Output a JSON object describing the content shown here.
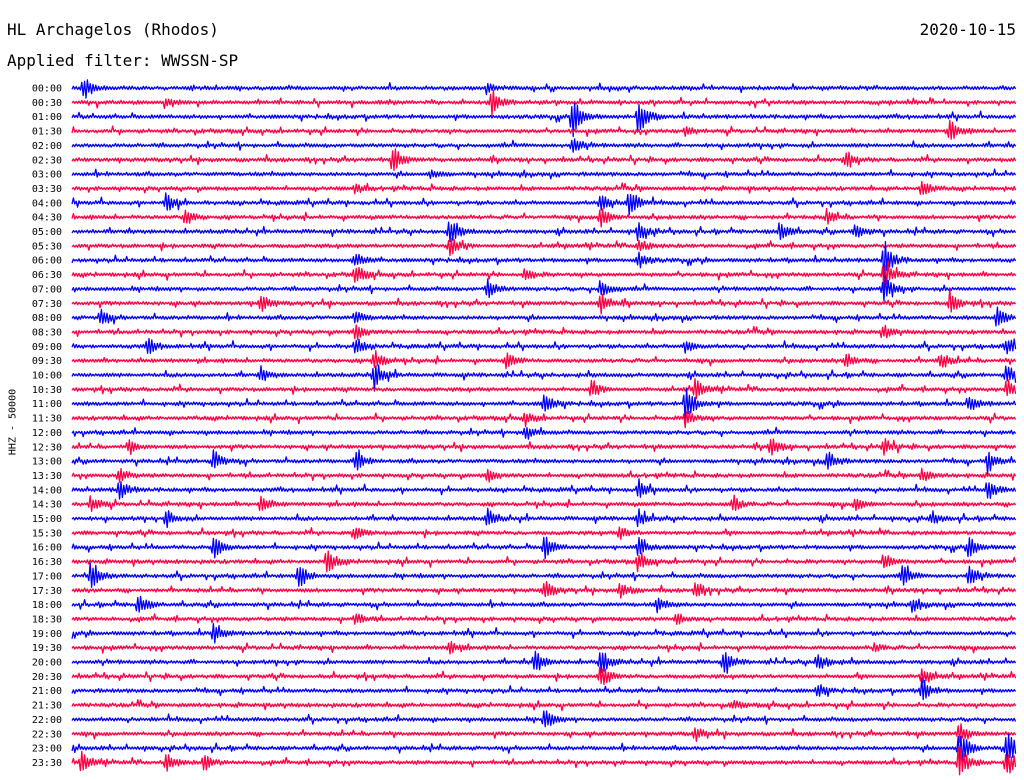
{
  "header": {
    "station": "HL Archagelos (Rhodos)",
    "date": "2020-10-15",
    "filter": "Applied filter: WWSSN-SP"
  },
  "chart_data": {
    "type": "line",
    "title": "HL Archagelos (Rhodos)",
    "date": "2020-10-15",
    "filter": "WWSSN-SP",
    "ylabel": "HHZ - 50000",
    "trace_colors": [
      "#0000ff",
      "#ff0040"
    ],
    "rows": [
      {
        "label": "00:00",
        "events": [
          [
            0.012,
            0.6
          ],
          [
            0.44,
            0.2
          ]
        ]
      },
      {
        "label": "00:30",
        "events": [
          [
            0.445,
            0.6
          ],
          [
            0.1,
            0.2
          ]
        ]
      },
      {
        "label": "01:00",
        "events": [
          [
            0.53,
            1.0
          ],
          [
            0.6,
            0.9
          ]
        ]
      },
      {
        "label": "01:30",
        "events": [
          [
            0.93,
            0.5
          ],
          [
            0.65,
            0.2
          ]
        ]
      },
      {
        "label": "02:00",
        "events": [
          [
            0.53,
            0.4
          ]
        ]
      },
      {
        "label": "02:30",
        "events": [
          [
            0.34,
            0.6
          ],
          [
            0.82,
            0.3
          ]
        ]
      },
      {
        "label": "03:00",
        "events": [
          [
            0.38,
            0.2
          ]
        ]
      },
      {
        "label": "03:30",
        "events": [
          [
            0.9,
            0.4
          ],
          [
            0.3,
            0.2
          ]
        ]
      },
      {
        "label": "04:00",
        "events": [
          [
            0.1,
            0.5
          ],
          [
            0.56,
            0.5
          ],
          [
            0.59,
            0.7
          ]
        ]
      },
      {
        "label": "04:30",
        "events": [
          [
            0.12,
            0.4
          ],
          [
            0.56,
            0.5
          ],
          [
            0.8,
            0.3
          ]
        ]
      },
      {
        "label": "05:00",
        "events": [
          [
            0.4,
            0.6
          ],
          [
            0.6,
            0.5
          ],
          [
            0.75,
            0.5
          ],
          [
            0.83,
            0.4
          ]
        ]
      },
      {
        "label": "05:30",
        "events": [
          [
            0.4,
            0.5
          ],
          [
            0.6,
            0.3
          ]
        ]
      },
      {
        "label": "06:00",
        "events": [
          [
            0.86,
            1.0
          ],
          [
            0.3,
            0.4
          ],
          [
            0.6,
            0.4
          ]
        ]
      },
      {
        "label": "06:30",
        "events": [
          [
            0.86,
            0.9
          ],
          [
            0.3,
            0.5
          ],
          [
            0.48,
            0.3
          ]
        ]
      },
      {
        "label": "07:00",
        "events": [
          [
            0.44,
            0.5
          ],
          [
            0.56,
            0.5
          ],
          [
            0.86,
            0.7
          ]
        ]
      },
      {
        "label": "07:30",
        "events": [
          [
            0.2,
            0.4
          ],
          [
            0.56,
            0.5
          ],
          [
            0.93,
            0.5
          ]
        ]
      },
      {
        "label": "08:00",
        "events": [
          [
            0.03,
            0.4
          ],
          [
            0.3,
            0.3
          ],
          [
            0.98,
            0.5
          ]
        ]
      },
      {
        "label": "08:30",
        "events": [
          [
            0.3,
            0.4
          ],
          [
            0.86,
            0.3
          ]
        ]
      },
      {
        "label": "09:00",
        "events": [
          [
            0.08,
            0.4
          ],
          [
            0.3,
            0.4
          ],
          [
            0.65,
            0.3
          ],
          [
            0.99,
            0.4
          ]
        ]
      },
      {
        "label": "09:30",
        "events": [
          [
            0.32,
            0.5
          ],
          [
            0.46,
            0.4
          ],
          [
            0.82,
            0.4
          ],
          [
            0.92,
            0.4
          ]
        ]
      },
      {
        "label": "10:00",
        "events": [
          [
            0.32,
            0.7
          ],
          [
            0.2,
            0.3
          ],
          [
            0.99,
            0.5
          ]
        ]
      },
      {
        "label": "10:30",
        "events": [
          [
            0.55,
            0.4
          ],
          [
            0.66,
            0.5
          ],
          [
            0.99,
            0.5
          ]
        ]
      },
      {
        "label": "11:00",
        "events": [
          [
            0.5,
            0.5
          ],
          [
            0.65,
            0.9
          ],
          [
            0.95,
            0.4
          ]
        ]
      },
      {
        "label": "11:30",
        "events": [
          [
            0.48,
            0.3
          ],
          [
            0.65,
            0.4
          ]
        ]
      },
      {
        "label": "12:00",
        "events": [
          [
            0.48,
            0.4
          ]
        ]
      },
      {
        "label": "12:30",
        "events": [
          [
            0.74,
            0.4
          ],
          [
            0.86,
            0.4
          ],
          [
            0.06,
            0.3
          ]
        ]
      },
      {
        "label": "13:00",
        "events": [
          [
            0.15,
            0.5
          ],
          [
            0.3,
            0.5
          ],
          [
            0.8,
            0.5
          ],
          [
            0.97,
            0.5
          ]
        ]
      },
      {
        "label": "13:30",
        "events": [
          [
            0.05,
            0.4
          ],
          [
            0.44,
            0.3
          ],
          [
            0.9,
            0.3
          ]
        ]
      },
      {
        "label": "14:00",
        "events": [
          [
            0.05,
            0.5
          ],
          [
            0.6,
            0.4
          ],
          [
            0.97,
            0.5
          ]
        ]
      },
      {
        "label": "14:30",
        "events": [
          [
            0.02,
            0.4
          ],
          [
            0.2,
            0.4
          ],
          [
            0.7,
            0.4
          ],
          [
            0.83,
            0.3
          ]
        ]
      },
      {
        "label": "15:00",
        "events": [
          [
            0.1,
            0.4
          ],
          [
            0.6,
            0.4
          ],
          [
            0.44,
            0.4
          ],
          [
            0.91,
            0.3
          ]
        ]
      },
      {
        "label": "15:30",
        "events": [
          [
            0.3,
            0.3
          ],
          [
            0.58,
            0.3
          ]
        ]
      },
      {
        "label": "16:00",
        "events": [
          [
            0.15,
            0.5
          ],
          [
            0.6,
            0.5
          ],
          [
            0.95,
            0.5
          ],
          [
            0.5,
            0.6
          ]
        ]
      },
      {
        "label": "16:30",
        "events": [
          [
            0.27,
            0.6
          ],
          [
            0.6,
            0.4
          ],
          [
            0.86,
            0.4
          ]
        ]
      },
      {
        "label": "17:00",
        "events": [
          [
            0.02,
            0.7
          ],
          [
            0.24,
            0.6
          ],
          [
            0.88,
            0.5
          ],
          [
            0.95,
            0.5
          ]
        ]
      },
      {
        "label": "17:30",
        "events": [
          [
            0.5,
            0.5
          ],
          [
            0.58,
            0.4
          ],
          [
            0.66,
            0.4
          ]
        ]
      },
      {
        "label": "18:00",
        "events": [
          [
            0.07,
            0.5
          ],
          [
            0.62,
            0.3
          ],
          [
            0.89,
            0.3
          ]
        ]
      },
      {
        "label": "18:30",
        "events": [
          [
            0.3,
            0.3
          ],
          [
            0.64,
            0.3
          ]
        ]
      },
      {
        "label": "19:00",
        "events": [
          [
            0.15,
            0.5
          ]
        ]
      },
      {
        "label": "19:30",
        "events": [
          [
            0.4,
            0.3
          ],
          [
            0.85,
            0.2
          ]
        ]
      },
      {
        "label": "20:00",
        "events": [
          [
            0.49,
            0.6
          ],
          [
            0.56,
            0.6
          ],
          [
            0.69,
            0.5
          ],
          [
            0.79,
            0.5
          ]
        ]
      },
      {
        "label": "20:30",
        "events": [
          [
            0.56,
            0.5
          ],
          [
            0.9,
            0.5
          ]
        ]
      },
      {
        "label": "21:00",
        "events": [
          [
            0.9,
            0.6
          ],
          [
            0.79,
            0.3
          ]
        ]
      },
      {
        "label": "21:30",
        "events": [
          [
            0.7,
            0.2
          ]
        ]
      },
      {
        "label": "22:00",
        "events": [
          [
            0.5,
            0.5
          ]
        ]
      },
      {
        "label": "22:30",
        "events": [
          [
            0.66,
            0.3
          ],
          [
            0.94,
            0.5
          ]
        ]
      },
      {
        "label": "23:00",
        "events": [
          [
            0.94,
            1.0
          ],
          [
            0.99,
            0.9
          ]
        ]
      },
      {
        "label": "23:30",
        "events": [
          [
            0.01,
            0.5
          ],
          [
            0.1,
            0.4
          ],
          [
            0.14,
            0.4
          ],
          [
            0.94,
            0.8
          ],
          [
            0.99,
            0.7
          ]
        ]
      }
    ]
  }
}
